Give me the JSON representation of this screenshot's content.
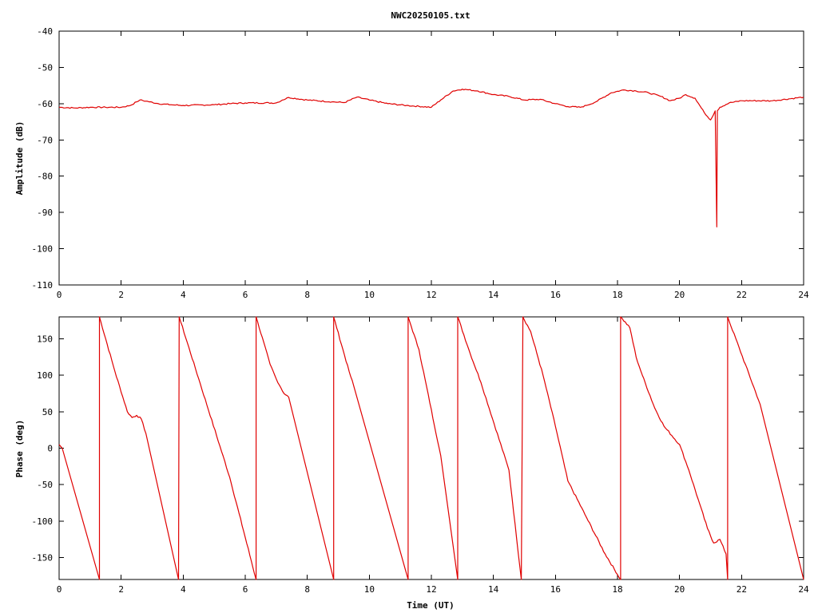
{
  "chart_data": [
    {
      "type": "line",
      "title": "NWC20250105.txt",
      "xlabel": "",
      "ylabel": "Amplitude (dB)",
      "xlim": [
        0,
        24
      ],
      "ylim": [
        -110,
        -40
      ],
      "xticks": [
        "0",
        "2",
        "4",
        "6",
        "8",
        "10",
        "12",
        "14",
        "16",
        "18",
        "20",
        "22",
        "24"
      ],
      "yticks": [
        "-40",
        "-50",
        "-60",
        "-70",
        "-80",
        "-90",
        "-100",
        "-110"
      ],
      "grid": false,
      "series_color": "#e00000",
      "series": [
        {
          "x": [
            0,
            0.5,
            1,
            1.5,
            2,
            2.3,
            2.5,
            2.6,
            2.8,
            3.2,
            3.6,
            4,
            5,
            5.5,
            6,
            7,
            7.2,
            7.4,
            8,
            8.8,
            9.2,
            9.6,
            10,
            10.6,
            11.2,
            12,
            12.3,
            12.7,
            13,
            13.5,
            14,
            14.5,
            15,
            15.5,
            16,
            16.4,
            16.8,
            17,
            17.3,
            17.8,
            18.2,
            18.6,
            19,
            19.4,
            19.7,
            20,
            20.2,
            20.5,
            20.8,
            21,
            21.15,
            21.2,
            21.22,
            21.3,
            21.6,
            22,
            23,
            24
          ],
          "y": [
            -61,
            -61.2,
            -61,
            -61,
            -61,
            -60.5,
            -59.5,
            -59,
            -59.3,
            -60,
            -60.3,
            -60.5,
            -60.3,
            -60,
            -59.8,
            -59.8,
            -59,
            -58.3,
            -59,
            -59.5,
            -59.7,
            -58.2,
            -59,
            -60,
            -60.5,
            -61,
            -59,
            -56.5,
            -56,
            -56.5,
            -57.5,
            -58,
            -59,
            -58.8,
            -60,
            -60.8,
            -61,
            -60.5,
            -59.5,
            -57,
            -56.2,
            -56.5,
            -57,
            -58,
            -59.2,
            -58.5,
            -57.5,
            -58.5,
            -62.5,
            -64.5,
            -62,
            -94,
            -62,
            -61,
            -59.8,
            -59.2,
            -59.2,
            -58.2
          ]
        }
      ]
    },
    {
      "type": "line",
      "title": "",
      "xlabel": "Time (UT)",
      "ylabel": "Phase (deg)",
      "xlim": [
        0,
        24
      ],
      "ylim": [
        -180,
        180
      ],
      "xticks": [
        "0",
        "2",
        "4",
        "6",
        "8",
        "10",
        "12",
        "14",
        "16",
        "18",
        "20",
        "22",
        "24"
      ],
      "yticks": [
        "150",
        "100",
        "50",
        "0",
        "-50",
        "-100",
        "-150"
      ],
      "ytick_values": [
        150,
        100,
        50,
        0,
        -50,
        -100,
        -150
      ],
      "grid": false,
      "series_color": "#e00000",
      "series": [
        {
          "x": [
            0,
            0.1,
            1.3,
            1.3,
            1.8,
            2.2,
            2.35,
            2.5,
            2.65,
            2.8,
            3.85,
            3.87,
            4.5,
            5.5,
            6.35,
            6.35,
            6.8,
            7,
            7.25,
            7.4,
            8.85,
            8.85,
            9.35,
            9.5,
            11.25,
            11.25,
            11.6,
            12.3,
            12.85,
            12.85,
            13.25,
            13.6,
            14.5,
            14.9,
            14.95,
            15.2,
            15.6,
            16,
            16.4,
            17,
            17.6,
            18.1,
            18.1,
            18.4,
            18.6,
            18.8,
            19.2,
            19.5,
            20,
            20.3,
            20.6,
            20.9,
            21.1,
            21.3,
            21.5,
            21.55,
            21.55,
            22.6,
            24
          ],
          "y": [
            5,
            0,
            -180,
            180,
            105,
            50,
            42,
            45,
            40,
            20,
            -180,
            180,
            95,
            -40,
            -180,
            180,
            115,
            95,
            75,
            70,
            -180,
            180,
            105,
            85,
            -180,
            180,
            135,
            -10,
            -180,
            180,
            130,
            90,
            -30,
            -180,
            180,
            160,
            100,
            30,
            -45,
            -95,
            -145,
            -180,
            180,
            165,
            125,
            100,
            55,
            30,
            5,
            -30,
            -70,
            -110,
            -130,
            -125,
            -145,
            -180,
            180,
            60,
            -180
          ]
        }
      ]
    }
  ]
}
